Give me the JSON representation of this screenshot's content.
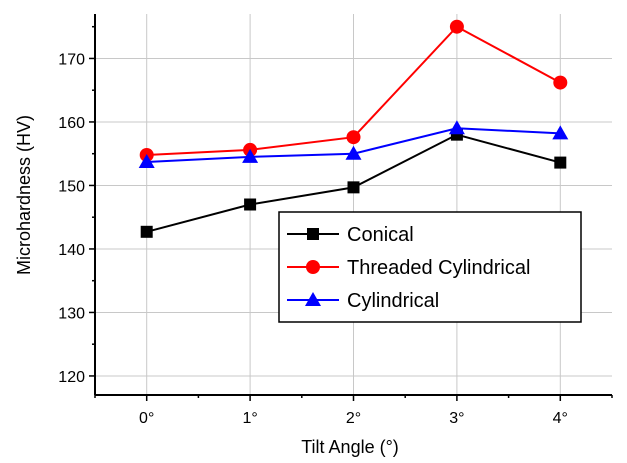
{
  "chart_data": {
    "type": "line",
    "title": "",
    "xlabel": "Tilt  Angle (°)",
    "ylabel": "Microhardness (HV)",
    "categories": [
      "0°",
      "1°",
      "2°",
      "3°",
      "4°"
    ],
    "x": [
      0,
      1,
      2,
      3,
      4
    ],
    "xlim": [
      -0.5,
      4.5
    ],
    "ylim": [
      117,
      177
    ],
    "yticks": [
      120,
      130,
      140,
      150,
      160,
      170
    ],
    "grid": true,
    "legend_position": "lower-right",
    "series": [
      {
        "name": "Conical",
        "values": [
          142.7,
          147.0,
          149.7,
          158.0,
          153.6
        ],
        "color": "#000000",
        "marker": "square"
      },
      {
        "name": "Threaded Cylindrical",
        "values": [
          154.8,
          155.6,
          157.6,
          175.0,
          166.2
        ],
        "color": "#ff0000",
        "marker": "circle"
      },
      {
        "name": "Cylindrical",
        "values": [
          153.7,
          154.5,
          155.0,
          159.0,
          158.2
        ],
        "color": "#0000ff",
        "marker": "triangle"
      }
    ]
  }
}
